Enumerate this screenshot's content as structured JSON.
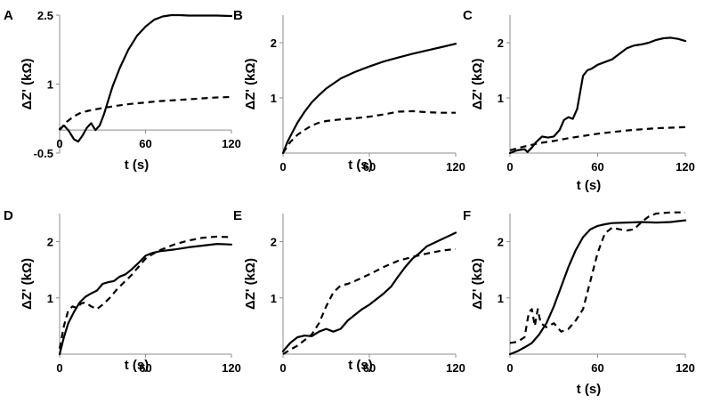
{
  "chart_data": [
    {
      "panel": "A",
      "type": "line",
      "title": "",
      "xlabel": "t (s)",
      "ylabel": "ΔZ' (kΩ)",
      "xlim": [
        0,
        120
      ],
      "ylim": [
        -0.5,
        2.5
      ],
      "xticks": [
        0,
        60,
        120
      ],
      "yticks": [
        -0.5,
        1,
        2.5
      ],
      "xtick_labels": [
        "0",
        "60",
        "120"
      ],
      "ytick_labels": [
        "-0.5",
        "1",
        "2.5"
      ],
      "grid": false,
      "series": [
        {
          "name": "solid",
          "style": "solid",
          "x": [
            0,
            3,
            6,
            10,
            13,
            16,
            19,
            22,
            25,
            28,
            31,
            34,
            37,
            42,
            48,
            54,
            60,
            66,
            72,
            78,
            84,
            90,
            100,
            110,
            120
          ],
          "y": [
            0.02,
            0.1,
            0.0,
            -0.2,
            -0.25,
            -0.12,
            0.05,
            0.15,
            0.0,
            0.1,
            0.35,
            0.65,
            0.95,
            1.35,
            1.75,
            2.05,
            2.25,
            2.4,
            2.47,
            2.5,
            2.5,
            2.49,
            2.49,
            2.49,
            2.48
          ]
        },
        {
          "name": "dashed",
          "style": "dashed",
          "x": [
            0,
            5,
            10,
            15,
            20,
            30,
            40,
            50,
            60,
            70,
            80,
            90,
            100,
            110,
            120
          ],
          "y": [
            0.0,
            0.18,
            0.3,
            0.38,
            0.42,
            0.48,
            0.53,
            0.57,
            0.6,
            0.63,
            0.65,
            0.67,
            0.69,
            0.71,
            0.72
          ]
        }
      ]
    },
    {
      "panel": "B",
      "type": "line",
      "title": "",
      "xlabel": "t (s)",
      "ylabel": "ΔZ' (kΩ)",
      "xlim": [
        0,
        120
      ],
      "ylim": [
        0,
        2.5
      ],
      "xticks": [
        0,
        60,
        120
      ],
      "yticks": [
        1,
        2
      ],
      "xtick_labels": [
        "0",
        "60",
        "120"
      ],
      "ytick_labels": [
        "1",
        "2"
      ],
      "grid": false,
      "series": [
        {
          "name": "solid",
          "style": "solid",
          "x": [
            0,
            3,
            6,
            10,
            15,
            20,
            25,
            30,
            40,
            50,
            60,
            70,
            80,
            90,
            100,
            110,
            120
          ],
          "y": [
            0.0,
            0.2,
            0.35,
            0.55,
            0.75,
            0.92,
            1.05,
            1.17,
            1.35,
            1.47,
            1.57,
            1.66,
            1.73,
            1.8,
            1.86,
            1.92,
            1.98
          ]
        },
        {
          "name": "dashed",
          "style": "dashed",
          "x": [
            0,
            5,
            10,
            15,
            20,
            25,
            30,
            40,
            50,
            60,
            70,
            80,
            90,
            100,
            110,
            120
          ],
          "y": [
            0.0,
            0.2,
            0.33,
            0.42,
            0.5,
            0.55,
            0.58,
            0.61,
            0.63,
            0.66,
            0.7,
            0.75,
            0.76,
            0.74,
            0.73,
            0.73
          ]
        }
      ]
    },
    {
      "panel": "C",
      "type": "line",
      "title": "",
      "xlabel": "t (s)",
      "ylabel": "ΔZ' (kΩ)",
      "xlim": [
        0,
        120
      ],
      "ylim": [
        0,
        2.5
      ],
      "xticks": [
        0,
        60,
        120
      ],
      "yticks": [
        1,
        2
      ],
      "xtick_labels": [
        "0",
        "60",
        "120"
      ],
      "ytick_labels": [
        "1",
        "2"
      ],
      "grid": false,
      "series": [
        {
          "name": "solid",
          "style": "solid",
          "x": [
            0,
            5,
            10,
            12,
            15,
            18,
            22,
            26,
            30,
            34,
            37,
            40,
            43,
            46,
            48,
            50,
            53,
            56,
            60,
            65,
            70,
            75,
            80,
            85,
            90,
            95,
            100,
            105,
            110,
            115,
            120
          ],
          "y": [
            0.0,
            0.05,
            0.07,
            0.02,
            0.1,
            0.2,
            0.3,
            0.28,
            0.3,
            0.42,
            0.6,
            0.65,
            0.62,
            0.8,
            1.1,
            1.4,
            1.5,
            1.53,
            1.6,
            1.65,
            1.7,
            1.8,
            1.9,
            1.95,
            1.97,
            2.0,
            2.05,
            2.08,
            2.09,
            2.07,
            2.03
          ]
        },
        {
          "name": "dashed",
          "style": "dashed",
          "x": [
            0,
            10,
            20,
            30,
            40,
            50,
            60,
            70,
            80,
            90,
            100,
            110,
            120
          ],
          "y": [
            0.05,
            0.12,
            0.18,
            0.22,
            0.27,
            0.31,
            0.35,
            0.38,
            0.41,
            0.43,
            0.45,
            0.46,
            0.47
          ]
        }
      ]
    },
    {
      "panel": "D",
      "type": "line",
      "title": "",
      "xlabel": "t (s)",
      "ylabel": "ΔZ' (kΩ)",
      "xlim": [
        0,
        120
      ],
      "ylim": [
        0,
        2.5
      ],
      "xticks": [
        0,
        60,
        120
      ],
      "yticks": [
        1,
        2
      ],
      "xtick_labels": [
        "0",
        "60",
        "120"
      ],
      "ytick_labels": [
        "1",
        "2"
      ],
      "grid": false,
      "series": [
        {
          "name": "solid",
          "style": "solid",
          "x": [
            0,
            3,
            6,
            10,
            14,
            18,
            22,
            26,
            30,
            34,
            38,
            42,
            46,
            50,
            55,
            60,
            65,
            70,
            80,
            90,
            100,
            110,
            120
          ],
          "y": [
            0.0,
            0.3,
            0.55,
            0.75,
            0.92,
            1.02,
            1.08,
            1.13,
            1.25,
            1.28,
            1.3,
            1.38,
            1.42,
            1.5,
            1.62,
            1.75,
            1.8,
            1.83,
            1.86,
            1.9,
            1.93,
            1.96,
            1.95
          ]
        },
        {
          "name": "dashed",
          "style": "dashed",
          "x": [
            0,
            3,
            6,
            9,
            12,
            15,
            18,
            22,
            26,
            30,
            35,
            40,
            45,
            50,
            55,
            60,
            65,
            70,
            80,
            90,
            100,
            110,
            120
          ],
          "y": [
            0.1,
            0.5,
            0.78,
            0.85,
            0.82,
            0.9,
            0.92,
            0.85,
            0.8,
            0.88,
            1.0,
            1.15,
            1.28,
            1.4,
            1.55,
            1.7,
            1.78,
            1.85,
            1.95,
            2.02,
            2.07,
            2.09,
            2.08
          ]
        }
      ]
    },
    {
      "panel": "E",
      "type": "line",
      "title": "",
      "xlabel": "t (s)",
      "ylabel": "ΔZ' (kΩ)",
      "xlim": [
        0,
        120
      ],
      "ylim": [
        0,
        2.5
      ],
      "xticks": [
        0,
        60,
        120
      ],
      "yticks": [
        1,
        2
      ],
      "xtick_labels": [
        "0",
        "60",
        "120"
      ],
      "ytick_labels": [
        "1",
        "2"
      ],
      "grid": false,
      "series": [
        {
          "name": "solid",
          "style": "solid",
          "x": [
            0,
            5,
            10,
            15,
            20,
            25,
            30,
            35,
            40,
            45,
            50,
            55,
            60,
            65,
            70,
            75,
            80,
            85,
            90,
            95,
            100,
            110,
            120
          ],
          "y": [
            0.05,
            0.2,
            0.3,
            0.33,
            0.32,
            0.4,
            0.45,
            0.4,
            0.45,
            0.6,
            0.7,
            0.8,
            0.88,
            0.98,
            1.08,
            1.2,
            1.38,
            1.55,
            1.7,
            1.8,
            1.92,
            2.04,
            2.16
          ]
        },
        {
          "name": "dashed",
          "style": "dashed",
          "x": [
            0,
            5,
            10,
            15,
            20,
            25,
            30,
            35,
            40,
            45,
            50,
            60,
            70,
            80,
            90,
            100,
            110,
            120
          ],
          "y": [
            0.0,
            0.08,
            0.15,
            0.25,
            0.35,
            0.55,
            0.85,
            1.1,
            1.22,
            1.25,
            1.3,
            1.42,
            1.55,
            1.66,
            1.73,
            1.79,
            1.84,
            1.87
          ]
        }
      ]
    },
    {
      "panel": "F",
      "type": "line",
      "title": "",
      "xlabel": "t (s)",
      "ylabel": "ΔZ' (kΩ)",
      "xlim": [
        0,
        120
      ],
      "ylim": [
        0,
        2.5
      ],
      "xticks": [
        0,
        60,
        120
      ],
      "yticks": [
        1,
        2
      ],
      "xtick_labels": [
        "0",
        "60",
        "120"
      ],
      "ytick_labels": [
        "1",
        "2"
      ],
      "grid": false,
      "series": [
        {
          "name": "solid",
          "style": "solid",
          "x": [
            0,
            5,
            10,
            15,
            20,
            25,
            30,
            35,
            40,
            45,
            50,
            55,
            60,
            65,
            70,
            80,
            90,
            100,
            110,
            120
          ],
          "y": [
            0.0,
            0.05,
            0.12,
            0.2,
            0.35,
            0.55,
            0.85,
            1.2,
            1.55,
            1.85,
            2.08,
            2.22,
            2.28,
            2.31,
            2.33,
            2.34,
            2.35,
            2.34,
            2.35,
            2.38
          ]
        },
        {
          "name": "dashed",
          "style": "dashed",
          "x": [
            0,
            5,
            10,
            13,
            15,
            17,
            19,
            21,
            25,
            30,
            35,
            40,
            45,
            50,
            55,
            60,
            65,
            70,
            75,
            80,
            85,
            90,
            95,
            100,
            110,
            120
          ],
          "y": [
            0.2,
            0.22,
            0.3,
            0.75,
            0.8,
            0.5,
            0.8,
            0.55,
            0.48,
            0.55,
            0.4,
            0.45,
            0.6,
            0.8,
            1.3,
            1.8,
            2.15,
            2.25,
            2.22,
            2.2,
            2.22,
            2.35,
            2.45,
            2.5,
            2.52,
            2.52
          ]
        }
      ]
    }
  ]
}
